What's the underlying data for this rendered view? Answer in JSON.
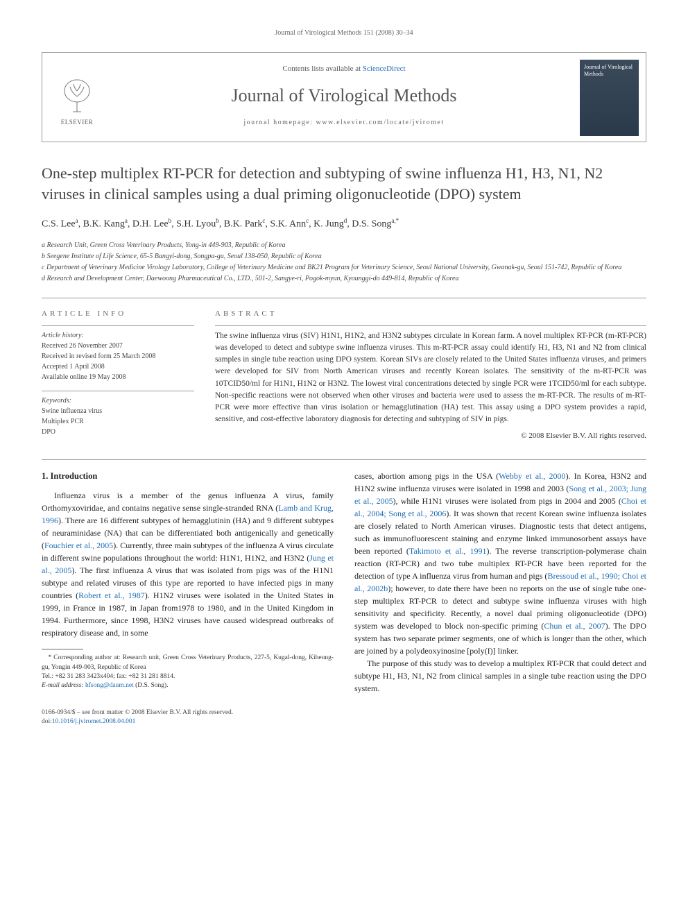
{
  "running_header": "Journal of Virological Methods 151 (2008) 30–34",
  "masthead": {
    "contents_line_pre": "Contents lists available at ",
    "contents_link": "ScienceDirect",
    "journal_name": "Journal of Virological Methods",
    "homepage_label": "journal homepage: ",
    "homepage_url": "www.elsevier.com/locate/jviromet",
    "publisher": "ELSEVIER",
    "cover_title": "Journal of Virological Methods"
  },
  "article": {
    "title": "One-step multiplex RT-PCR for detection and subtyping of swine influenza H1, H3, N1, N2 viruses in clinical samples using a dual priming oligonucleotide (DPO) system",
    "authors_html": "C.S. Lee<sup>a</sup>, B.K. Kang<sup>a</sup>, D.H. Lee<sup>b</sup>, S.H. Lyou<sup>b</sup>, B.K. Park<sup>c</sup>, S.K. Ann<sup>c</sup>, K. Jung<sup>d</sup>, D.S. Song<sup>a,*</sup>",
    "affiliations": [
      "a Research Unit, Green Cross Veterinary Products, Yong-in 449-903, Republic of Korea",
      "b Seegene Institute of Life Science, 65-5 Bangyi-dong, Songpa-gu, Seoul 138-050, Republic of Korea",
      "c Department of Veterinary Medicine Virology Laboratory, College of Veterinary Medicine and BK21 Program for Veterinary Science, Seoul National University, Gwanak-gu, Seoul 151-742, Republic of Korea",
      "d Research and Development Center, Daewoong Pharmaceutical Co., LTD., 501-2, Sangye-ri, Pogok-myun, Kyounggi-do 449-814, Republic of Korea"
    ]
  },
  "info": {
    "heading": "ARTICLE INFO",
    "history_label": "Article history:",
    "history": [
      "Received 26 November 2007",
      "Received in revised form 25 March 2008",
      "Accepted 1 April 2008",
      "Available online 19 May 2008"
    ],
    "keywords_label": "Keywords:",
    "keywords": [
      "Swine influenza virus",
      "Multiplex PCR",
      "DPO"
    ]
  },
  "abstract": {
    "heading": "ABSTRACT",
    "text": "The swine influenza virus (SIV) H1N1, H1N2, and H3N2 subtypes circulate in Korean farm. A novel multiplex RT-PCR (m-RT-PCR) was developed to detect and subtype swine influenza viruses. This m-RT-PCR assay could identify H1, H3, N1 and N2 from clinical samples in single tube reaction using DPO system. Korean SIVs are closely related to the United States influenza viruses, and primers were developed for SIV from North American viruses and recently Korean isolates. The sensitivity of the m-RT-PCR was 10TCID50/ml for H1N1, H1N2 or H3N2. The lowest viral concentrations detected by single PCR were 1TCID50/ml for each subtype. Non-specific reactions were not observed when other viruses and bacteria were used to assess the m-RT-PCR. The results of m-RT-PCR were more effective than virus isolation or hemagglutination (HA) test. This assay using a DPO system provides a rapid, sensitive, and cost-effective laboratory diagnosis for detecting and subtyping of SIV in pigs.",
    "copyright": "© 2008 Elsevier B.V. All rights reserved."
  },
  "intro": {
    "heading": "1.  Introduction",
    "p1_pre": "Influenza virus is a member of the genus influenza A virus, family Orthomyxoviridae, and contains negative sense single-stranded RNA (",
    "p1_ref1": "Lamb and Krug, 1996",
    "p1_mid1": "). There are 16 different subtypes of hemagglutinin (HA) and 9 different subtypes of neuraminidase (NA) that can be differentiated both antigenically and genetically (",
    "p1_ref2": "Fouchier et al., 2005",
    "p1_mid2": "). Currently, three main subtypes of the influenza A virus circulate in different swine populations throughout the world: H1N1, H1N2, and H3N2 (",
    "p1_ref3": "Jung et al., 2005",
    "p1_mid3": "). The first influenza A virus that was isolated from pigs was of the H1N1 subtype and related viruses of this type are reported to have infected pigs in many countries (",
    "p1_ref4": "Robert et al., 1987",
    "p1_post": "). H1N2 viruses were isolated in the United States in 1999, in France in 1987, in Japan from1978 to 1980, and in the United Kingdom in 1994. Furthermore, since 1998, H3N2 viruses have caused widespread outbreaks of respiratory disease and, in some",
    "p2_pre": "cases, abortion among pigs in the USA (",
    "p2_ref1": "Webby et al., 2000",
    "p2_mid1": "). In Korea, H3N2 and H1N2 swine influenza viruses were isolated in 1998 and 2003 (",
    "p2_ref2": "Song et al., 2003; Jung et al., 2005",
    "p2_mid2": "), while H1N1 viruses were isolated from pigs in 2004 and 2005 (",
    "p2_ref3": "Choi et al., 2004; Song et al., 2006",
    "p2_mid3": "). It was shown that recent Korean swine influenza isolates are closely related to North American viruses. Diagnostic tests that detect antigens, such as immunofluorescent staining and enzyme linked immunosorbent assays have been reported (",
    "p2_ref4": "Takimoto et al., 1991",
    "p2_mid4": "). The reverse transcription-polymerase chain reaction (RT-PCR) and two tube multiplex RT-PCR have been reported for the detection of type A influenza virus from human and pigs (",
    "p2_ref5": "Bressoud et al., 1990; Choi et al., 2002b",
    "p2_mid5": "); however, to date there have been no reports on the use of single tube one-step multiplex RT-PCR to detect and subtype swine influenza viruses with high sensitivity and specificity. Recently, a novel dual priming oligonucleotide (DPO) system was developed to block non-specific priming (",
    "p2_ref6": "Chun et al., 2007",
    "p2_post": "). The DPO system has two separate primer segments, one of which is longer than the other, which are joined by a polydeoxyinosine [poly(I)] linker.",
    "p3": "The purpose of this study was to develop a multiplex RT-PCR that could detect and subtype H1, H3, N1, N2 from clinical samples in a single tube reaction using the DPO system."
  },
  "corresponding": {
    "label": "* Corresponding author at: Research unit, Green Cross Veterinary Products, 227-5, Kugal-dong, Kiheung-gu, Yongin 449-903, Republic of Korea",
    "tel": "Tel.: +82 31 283 3423x404; fax: +82 31 281 8814.",
    "email_label": "E-mail address: ",
    "email": "hfsong@daum.net",
    "email_who": " (D.S. Song)."
  },
  "footer": {
    "issn_line": "0166-0934/$ – see front matter © 2008 Elsevier B.V. All rights reserved.",
    "doi_label": "doi:",
    "doi": "10.1016/j.jviromet.2008.04.001"
  },
  "colors": {
    "link": "#1a6bb3",
    "heading_gray": "#555",
    "rule": "#999",
    "cover_bg_top": "#3a4a5a",
    "cover_bg_bottom": "#2a3a4a"
  }
}
